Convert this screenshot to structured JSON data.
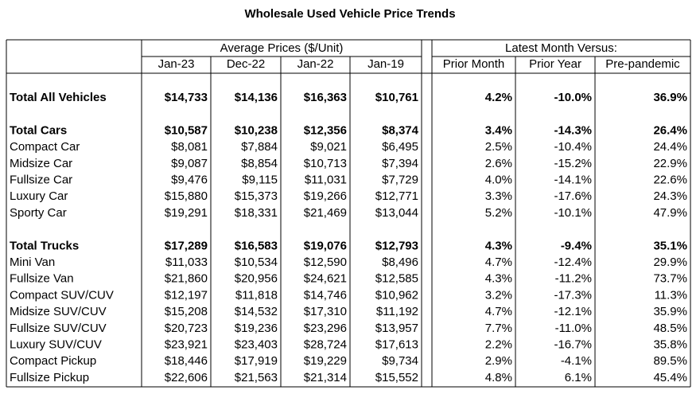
{
  "title": "Wholesale Used Vehicle Price Trends",
  "table": {
    "group_headers": [
      "Average Prices ($/Unit)",
      "Latest Month Versus:"
    ],
    "columns": [
      "Jan-23",
      "Dec-22",
      "Jan-22",
      "Jan-19",
      "Prior Month",
      "Prior Year",
      "Pre-pandemic"
    ],
    "sections": [
      [
        [
          "Total All Vehicles",
          "$14,733",
          "$14,136",
          "$16,363",
          "$10,761",
          "4.2%",
          "-10.0%",
          "36.9%"
        ]
      ],
      [
        [
          "Total Cars",
          "$10,587",
          "$10,238",
          "$12,356",
          "$8,374",
          "3.4%",
          "-14.3%",
          "26.4%"
        ],
        [
          "Compact Car",
          "$8,081",
          "$7,884",
          "$9,021",
          "$6,495",
          "2.5%",
          "-10.4%",
          "24.4%"
        ],
        [
          "Midsize Car",
          "$9,087",
          "$8,854",
          "$10,713",
          "$7,394",
          "2.6%",
          "-15.2%",
          "22.9%"
        ],
        [
          "Fullsize Car",
          "$9,476",
          "$9,115",
          "$11,031",
          "$7,729",
          "4.0%",
          "-14.1%",
          "22.6%"
        ],
        [
          "Luxury Car",
          "$15,880",
          "$15,373",
          "$19,266",
          "$12,771",
          "3.3%",
          "-17.6%",
          "24.3%"
        ],
        [
          "Sporty Car",
          "$19,291",
          "$18,331",
          "$21,469",
          "$13,044",
          "5.2%",
          "-10.1%",
          "47.9%"
        ]
      ],
      [
        [
          "Total Trucks",
          "$17,289",
          "$16,583",
          "$19,076",
          "$12,793",
          "4.3%",
          "-9.4%",
          "35.1%"
        ],
        [
          "Mini Van",
          "$11,033",
          "$10,534",
          "$12,590",
          "$8,496",
          "4.7%",
          "-12.4%",
          "29.9%"
        ],
        [
          "Fullsize Van",
          "$21,860",
          "$20,956",
          "$24,621",
          "$12,585",
          "4.3%",
          "-11.2%",
          "73.7%"
        ],
        [
          "Compact SUV/CUV",
          "$12,197",
          "$11,818",
          "$14,746",
          "$10,962",
          "3.2%",
          "-17.3%",
          "11.3%"
        ],
        [
          "Midsize SUV/CUV",
          "$15,208",
          "$14,532",
          "$17,310",
          "$11,192",
          "4.7%",
          "-12.1%",
          "35.9%"
        ],
        [
          "Fullsize SUV/CUV",
          "$20,723",
          "$19,236",
          "$23,296",
          "$13,957",
          "7.7%",
          "-11.0%",
          "48.5%"
        ],
        [
          "Luxury SUV/CUV",
          "$23,921",
          "$23,403",
          "$28,724",
          "$17,613",
          "2.2%",
          "-16.7%",
          "35.8%"
        ],
        [
          "Compact Pickup",
          "$18,446",
          "$17,919",
          "$19,229",
          "$9,734",
          "2.9%",
          "-4.1%",
          "89.5%"
        ],
        [
          "Fullsize Pickup",
          "$22,606",
          "$21,563",
          "$21,314",
          "$15,552",
          "4.8%",
          "6.1%",
          "45.4%"
        ]
      ]
    ]
  }
}
